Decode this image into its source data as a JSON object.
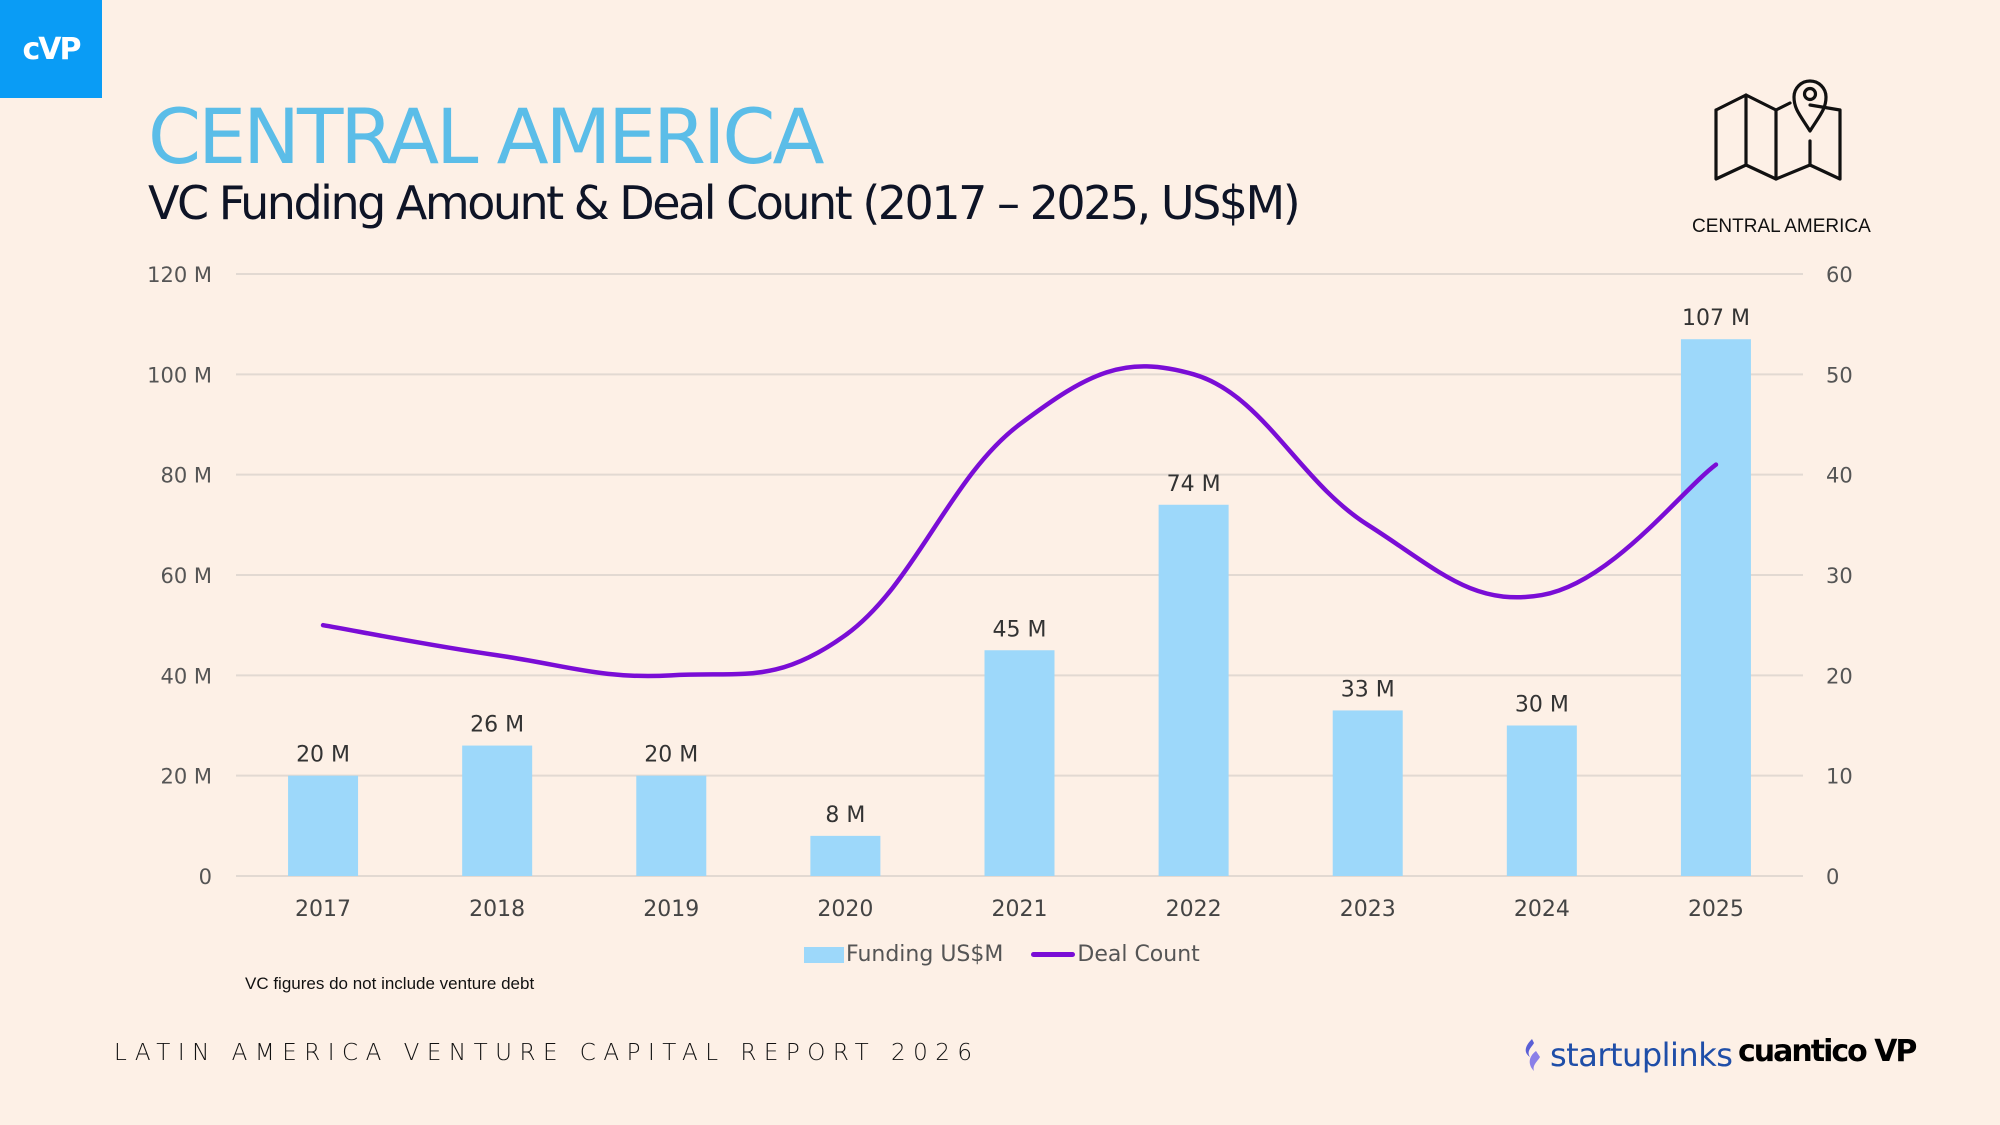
{
  "brand": {
    "logo_text": "cVP",
    "logo_color": "#0a9cf5"
  },
  "header": {
    "title": "CENTRAL AMERICA",
    "subtitle": "VC Funding Amount & Deal Count (2017 – 2025, US$M)",
    "title_color": "#5bbde8"
  },
  "region_badge": {
    "icon": "map-pin-icon",
    "label": "CENTRAL AMERICA"
  },
  "chart_data": {
    "type": "bar",
    "title": "VC Funding Amount & Deal Count (2017 – 2025, US$M)",
    "xlabel": "",
    "ylabel": "",
    "y2label": "",
    "categories": [
      "2017",
      "2018",
      "2019",
      "2020",
      "2021",
      "2022",
      "2023",
      "2024",
      "2025"
    ],
    "series": [
      {
        "name": "Funding US$M",
        "type": "bar",
        "axis": "left",
        "color": "#9dd8fa",
        "values": [
          20,
          26,
          20,
          8,
          45,
          74,
          33,
          30,
          107
        ],
        "labels": [
          "20 M",
          "26 M",
          "20 M",
          "8 M",
          "45 M",
          "74 M",
          "33 M",
          "30 M",
          "107 M"
        ]
      },
      {
        "name": "Deal Count",
        "type": "line",
        "smooth": true,
        "axis": "right",
        "color": "#7a0dd6",
        "values": [
          25,
          22,
          20,
          24,
          45,
          50,
          35,
          28,
          41
        ]
      }
    ],
    "ylim": [
      0,
      120
    ],
    "y2lim": [
      0,
      60
    ],
    "y_ticks": [
      "0",
      "20 M",
      "40 M",
      "60 M",
      "80 M",
      "100 M",
      "120 M"
    ],
    "y2_ticks": [
      "0",
      "10",
      "20",
      "30",
      "40",
      "50",
      "60"
    ],
    "grid": true,
    "legend_position": "bottom-center"
  },
  "legend": {
    "bar_label": "Funding US$M",
    "line_label": "Deal Count"
  },
  "footnote": "VC figures do not include venture debt",
  "footer": {
    "report_title": "LATIN AMERICA VENTURE CAPITAL REPORT 2026",
    "partner1": "startuplinks",
    "partner2": "cuantico VP"
  }
}
